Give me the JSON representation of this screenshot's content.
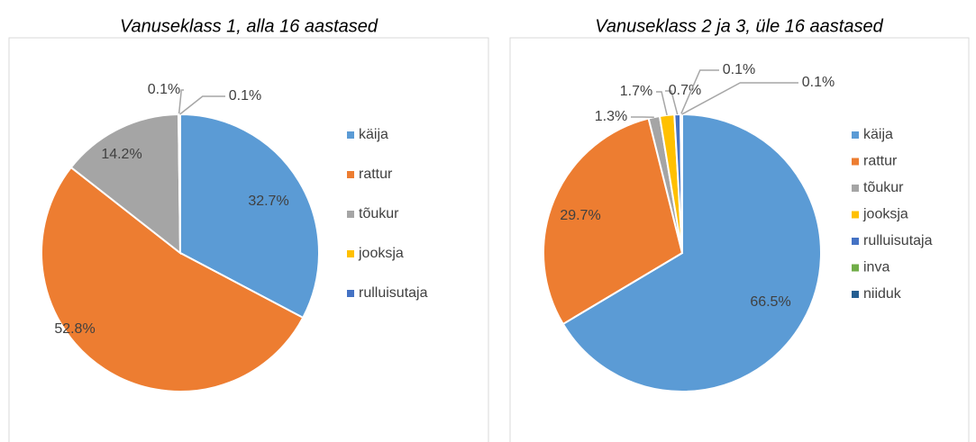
{
  "chart_data": [
    {
      "type": "pie",
      "title": "Vanuseklass 1, alla 16 aastased",
      "categories": [
        "käija",
        "rattur",
        "tõukur",
        "jooksja",
        "rulluisutaja"
      ],
      "values": [
        32.7,
        52.8,
        14.2,
        0.1,
        0.1
      ],
      "value_labels": [
        "32.7%",
        "52.8%",
        "14.2%",
        "0.1%",
        "0.1%"
      ],
      "colors": [
        "#5b9bd5",
        "#ed7d31",
        "#a5a5a5",
        "#ffc000",
        "#4472c4"
      ],
      "legend": "right"
    },
    {
      "type": "pie",
      "title": "Vanuseklass 2 ja 3, üle 16 aastased",
      "categories": [
        "käija",
        "rattur",
        "tõukur",
        "jooksja",
        "rulluisutaja",
        "inva",
        "niiduk"
      ],
      "values": [
        66.5,
        29.7,
        1.3,
        1.7,
        0.7,
        0.1,
        0.1
      ],
      "value_labels": [
        "66.5%",
        "29.7%",
        "1.3%",
        "1.7%",
        "0.7%",
        "0.1%",
        "0.1%"
      ],
      "colors": [
        "#5b9bd5",
        "#ed7d31",
        "#a5a5a5",
        "#ffc000",
        "#4472c4",
        "#70ad47",
        "#255e91"
      ],
      "legend": "right"
    }
  ]
}
